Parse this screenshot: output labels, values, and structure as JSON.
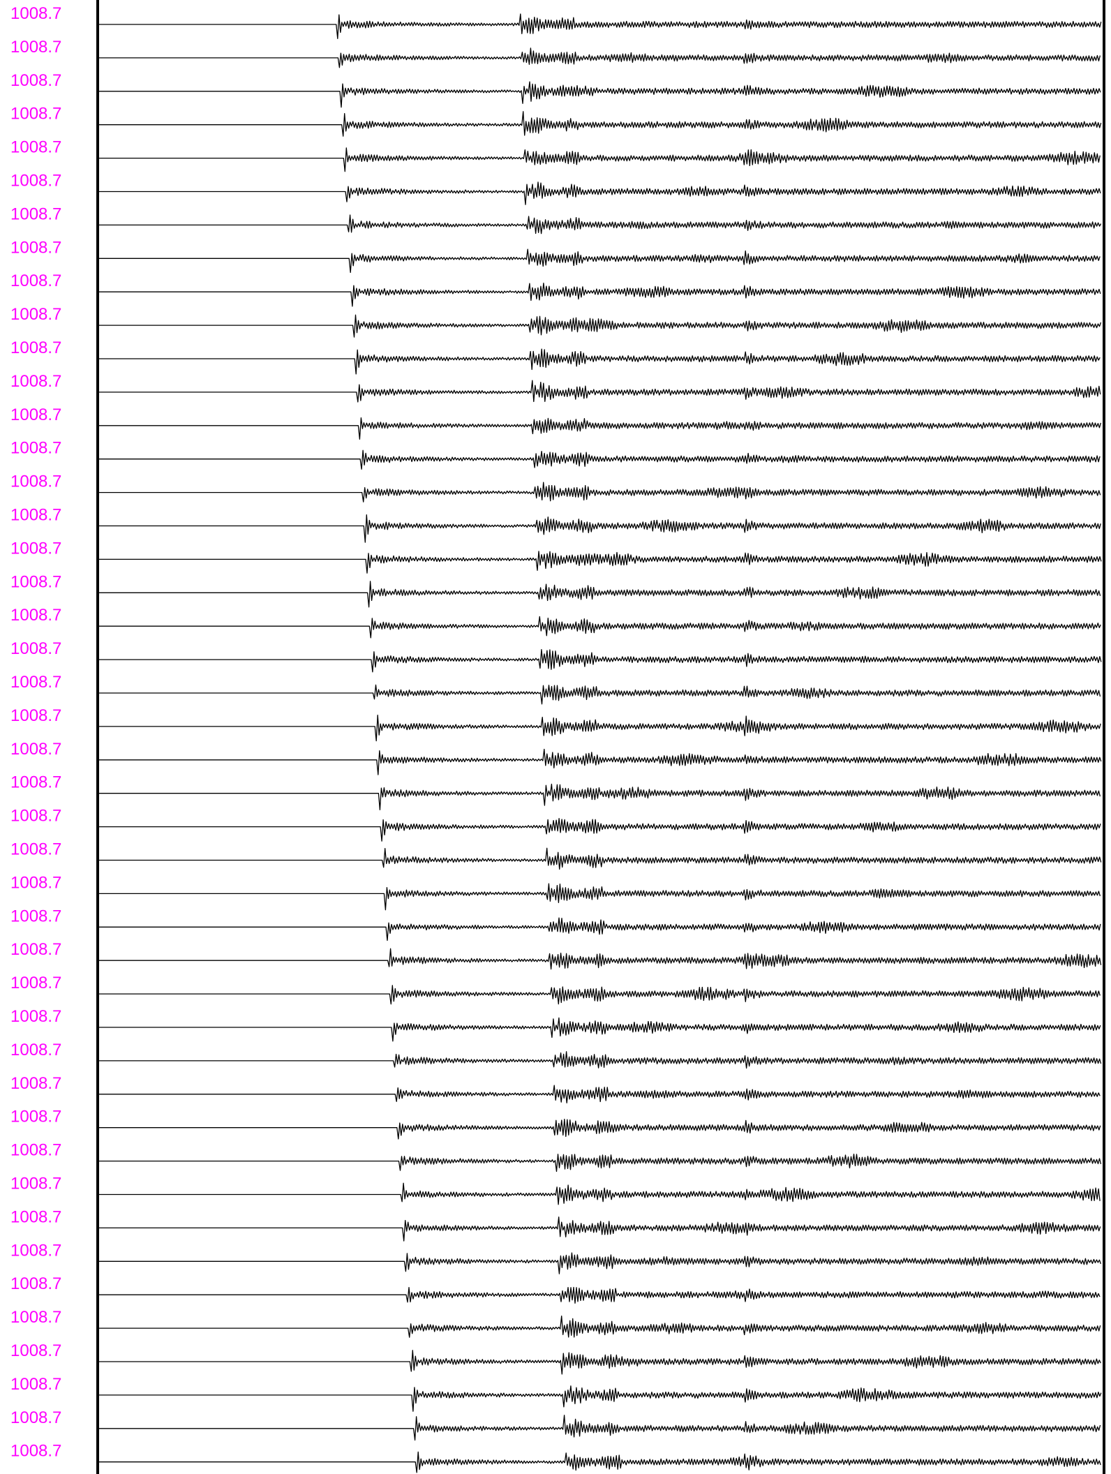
{
  "colors": {
    "label": "#ff00ff",
    "trace": "#000000",
    "frame": "#000000",
    "background": "#ffffff"
  },
  "chart_data": {
    "type": "line",
    "title": "",
    "xlabel": "",
    "ylabel": "",
    "grid": false,
    "legend": "none",
    "trace_count": 44,
    "labels": [
      "1008.7",
      "1008.7",
      "1008.7",
      "1008.7",
      "1008.7",
      "1008.7",
      "1008.7",
      "1008.7",
      "1008.7",
      "1008.7",
      "1008.7",
      "1008.7",
      "1008.7",
      "1008.7",
      "1008.7",
      "1008.7",
      "1008.7",
      "1008.7",
      "1008.7",
      "1008.7",
      "1008.7",
      "1008.7",
      "1008.7",
      "1008.7",
      "1008.7",
      "1008.7",
      "1008.7",
      "1008.7",
      "1008.7",
      "1008.7",
      "1008.7",
      "1008.7",
      "1008.7",
      "1008.7",
      "1008.7",
      "1008.7",
      "1008.7",
      "1008.7",
      "1008.7",
      "1008.7",
      "1008.7",
      "1008.7",
      "1008.7",
      "1008.7"
    ],
    "first_arrival_fraction": {
      "first": 0.238,
      "last": 0.317
    },
    "second_arrival_fraction": {
      "first": 0.42,
      "last": 0.465
    },
    "third_arrival_fraction": 0.645
  }
}
